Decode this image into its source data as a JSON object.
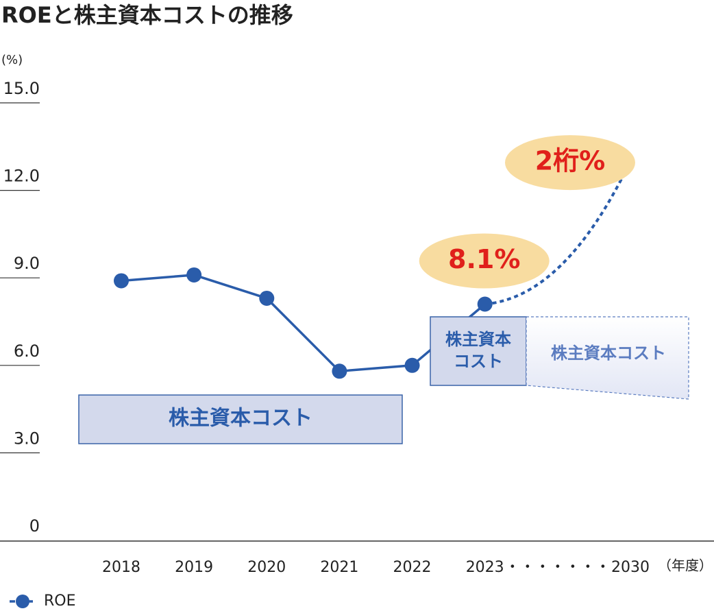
{
  "chart_data": {
    "type": "line",
    "title": "ROEと株主資本コストの推移",
    "y_unit": "(%)",
    "x_unit": "（年度）",
    "categories": [
      "2018",
      "2019",
      "2020",
      "2021",
      "2022",
      "2023",
      "・・・・・・・",
      "2030"
    ],
    "series": [
      {
        "name": "ROE",
        "color": "#2a5caa",
        "values": [
          8.9,
          9.1,
          8.3,
          5.8,
          6.0,
          8.1,
          null,
          null
        ],
        "value_labels": [
          null,
          null,
          null,
          null,
          null,
          "8.1%",
          null,
          null
        ]
      }
    ],
    "projection": {
      "color": "#2a5caa",
      "style": "dashed",
      "values": [
        null,
        null,
        null,
        null,
        null,
        8.1,
        null,
        13.0
      ]
    },
    "target_label": "2桁%",
    "cost_boxes": [
      {
        "lines": [
          "株主資本コスト"
        ]
      },
      {
        "lines": [
          "株主資本",
          "コスト"
        ]
      },
      {
        "lines": [
          "株主資本コスト"
        ]
      }
    ],
    "ylim": [
      0,
      15
    ],
    "yticks": [
      0,
      {
        "value": 3,
        "label": "3.0"
      },
      {
        "value": 6,
        "label": "6.0"
      },
      {
        "value": 9,
        "label": "9.0"
      },
      {
        "value": 12,
        "label": "12.0"
      },
      {
        "value": 15,
        "label": "15.0"
      }
    ],
    "label_color": "#e0201b",
    "label_bg": "#f8dca0"
  }
}
